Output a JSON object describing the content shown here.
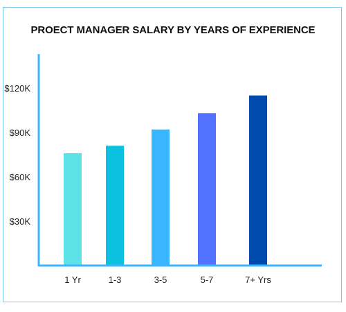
{
  "chart_data": {
    "type": "bar",
    "title": "PROECT MANAGER SALARY BY YEARS OF EXPERIENCE",
    "categories": [
      "1 Yr",
      "1-3",
      "3-5",
      "5-7",
      "7+ Yrs"
    ],
    "values": [
      76000,
      81000,
      92000,
      103000,
      115000
    ],
    "xlabel": "",
    "ylabel": "",
    "ylim": [
      0,
      120000
    ],
    "yticks": [
      30000,
      60000,
      90000,
      120000
    ],
    "ytick_labels": [
      "$30K",
      "$60K",
      "$90K",
      "$120K"
    ],
    "bar_colors": [
      "#5ce1e6",
      "#0cc0df",
      "#38b6ff",
      "#5271ff",
      "#004aad"
    ],
    "axis_color": "#38b6ff",
    "grid": false,
    "legend": "none"
  }
}
